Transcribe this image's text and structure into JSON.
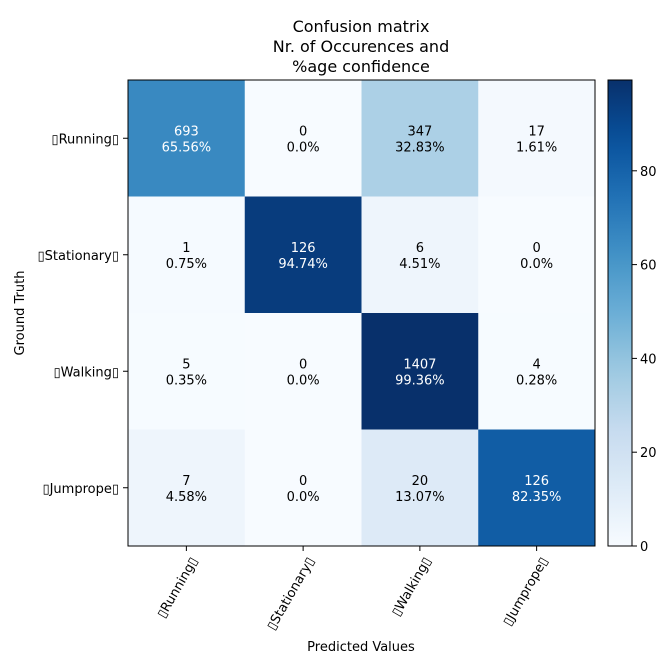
{
  "chart_data": {
    "type": "heatmap",
    "title": [
      "Confusion matrix",
      "Nr. of Occurences and",
      "%age confidence"
    ],
    "xlabel": "Predicted Values",
    "ylabel": "Ground Truth",
    "x_tick_labels": [
      "▯Running▯",
      "▯Stationary▯",
      "▯Walking▯",
      "▯Jumprope▯"
    ],
    "y_tick_labels": [
      "▯Running▯",
      "▯Stationary▯",
      "▯Walking▯",
      "▯Jumprope▯"
    ],
    "counts": [
      [
        693,
        0,
        347,
        17
      ],
      [
        1,
        126,
        6,
        0
      ],
      [
        5,
        0,
        1407,
        4
      ],
      [
        7,
        0,
        20,
        126
      ]
    ],
    "percent_labels": [
      [
        "65.56%",
        "0.0%",
        "32.83%",
        "1.61%"
      ],
      [
        "0.75%",
        "94.74%",
        "4.51%",
        "0.0%"
      ],
      [
        "0.35%",
        "0.0%",
        "99.36%",
        "0.28%"
      ],
      [
        "4.58%",
        "0.0%",
        "13.07%",
        "82.35%"
      ]
    ],
    "percent_values": [
      [
        65.56,
        0.0,
        32.83,
        1.61
      ],
      [
        0.75,
        94.74,
        4.51,
        0.0
      ],
      [
        0.35,
        0.0,
        99.36,
        0.28
      ],
      [
        4.58,
        0.0,
        13.07,
        82.35
      ]
    ],
    "colormap": "Blues",
    "colorbar": {
      "range": [
        0,
        99.36
      ],
      "ticks": [
        0,
        20,
        40,
        60,
        80
      ],
      "tick_labels": [
        "0",
        "20",
        "40",
        "60",
        "80"
      ]
    },
    "text_color_dark": "#000000",
    "text_color_light": "#ffffff",
    "grid": false
  }
}
